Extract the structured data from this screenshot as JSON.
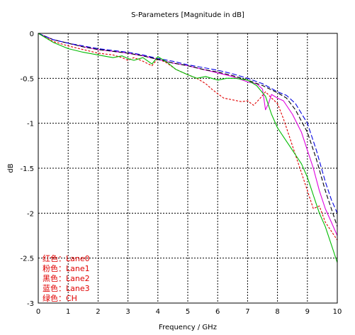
{
  "chart_data": {
    "type": "line",
    "title": "S-Parameters [Magnitude in dB]",
    "xlabel": "Frequency / GHz",
    "ylabel": "dB",
    "xlim": [
      0,
      10
    ],
    "ylim": [
      -3,
      0
    ],
    "x_ticks": [
      "0",
      "1",
      "2",
      "3",
      "4",
      "5",
      "6",
      "7",
      "8",
      "9",
      "10"
    ],
    "y_ticks": [
      "0",
      "-0.5",
      "-1",
      "-1.5",
      "-2",
      "-2.5",
      "-3"
    ],
    "grid": true,
    "legend_position": "bottom-left",
    "legend": [
      "红色：Lane0",
      "粉色：Lane1",
      "黑色：Lane2",
      "蓝色：Lane3",
      "绿色：CH"
    ],
    "series": [
      {
        "label": "Lane0",
        "color": "#e00000",
        "dash": "3,2",
        "x": [
          0,
          0.5,
          1,
          1.5,
          2,
          2.5,
          2.8,
          3,
          3.2,
          3.5,
          3.8,
          4,
          4.3,
          4.6,
          5,
          5.3,
          5.6,
          5.8,
          6,
          6.2,
          6.5,
          6.8,
          7,
          7.2,
          7.4,
          7.6,
          7.8,
          8,
          8.2,
          8.4,
          8.6,
          8.8,
          9,
          9.2,
          9.4,
          9.6,
          9.8,
          10
        ],
        "y": [
          0,
          -0.09,
          -0.14,
          -0.18,
          -0.22,
          -0.24,
          -0.27,
          -0.3,
          -0.27,
          -0.31,
          -0.36,
          -0.28,
          -0.33,
          -0.4,
          -0.46,
          -0.5,
          -0.56,
          -0.62,
          -0.67,
          -0.72,
          -0.74,
          -0.76,
          -0.75,
          -0.8,
          -0.73,
          -0.65,
          -0.72,
          -0.78,
          -0.95,
          -1.15,
          -1.35,
          -1.55,
          -1.75,
          -1.95,
          -1.92,
          -2.1,
          -2.2,
          -2.3
        ]
      },
      {
        "label": "Lane1",
        "color": "#e000e0",
        "dash": "",
        "x": [
          0,
          0.5,
          1,
          1.5,
          2,
          2.5,
          3,
          3.5,
          4,
          4.5,
          5,
          5.5,
          6,
          6.5,
          7,
          7.3,
          7.5,
          7.6,
          7.7,
          7.8,
          8,
          8.2,
          8.5,
          8.8,
          9,
          9.2,
          9.4,
          9.6,
          9.8,
          10
        ],
        "y": [
          0,
          -0.07,
          -0.11,
          -0.15,
          -0.18,
          -0.2,
          -0.22,
          -0.25,
          -0.29,
          -0.33,
          -0.36,
          -0.4,
          -0.44,
          -0.48,
          -0.54,
          -0.56,
          -0.62,
          -0.85,
          -0.78,
          -0.68,
          -0.72,
          -0.75,
          -0.9,
          -1.1,
          -1.3,
          -1.5,
          -1.75,
          -1.95,
          -2.1,
          -2.25
        ]
      },
      {
        "label": "Lane2",
        "color": "#000000",
        "dash": "6,3",
        "x": [
          0,
          0.5,
          1,
          1.5,
          2,
          2.5,
          3,
          3.5,
          4,
          4.5,
          5,
          5.5,
          6,
          6.5,
          7,
          7.5,
          8,
          8.3,
          8.6,
          9,
          9.3,
          9.6,
          9.8,
          10
        ],
        "y": [
          0,
          -0.07,
          -0.11,
          -0.15,
          -0.18,
          -0.2,
          -0.22,
          -0.25,
          -0.29,
          -0.33,
          -0.36,
          -0.4,
          -0.43,
          -0.47,
          -0.52,
          -0.58,
          -0.66,
          -0.72,
          -0.85,
          -1.1,
          -1.4,
          -1.75,
          -1.95,
          -2.15
        ]
      },
      {
        "label": "Lane3",
        "color": "#0000e0",
        "dash": "7,3",
        "x": [
          0,
          0.5,
          1,
          1.5,
          2,
          2.5,
          3,
          3.5,
          4,
          4.5,
          5,
          5.5,
          6,
          6.5,
          7,
          7.5,
          8,
          8.3,
          8.6,
          9,
          9.3,
          9.6,
          9.8,
          10
        ],
        "y": [
          0,
          -0.07,
          -0.11,
          -0.14,
          -0.17,
          -0.19,
          -0.21,
          -0.24,
          -0.28,
          -0.31,
          -0.35,
          -0.38,
          -0.41,
          -0.45,
          -0.5,
          -0.56,
          -0.65,
          -0.69,
          -0.78,
          -1.0,
          -1.3,
          -1.65,
          -1.85,
          -2.0
        ]
      },
      {
        "label": "CH",
        "color": "#00bb00",
        "dash": "",
        "x": [
          0,
          0.5,
          1,
          1.5,
          2,
          2.5,
          2.8,
          3,
          3.2,
          3.5,
          3.8,
          4,
          4.3,
          4.6,
          5,
          5.3,
          5.6,
          6,
          6.3,
          6.6,
          7,
          7.3,
          7.6,
          7.8,
          8,
          8.2,
          8.4,
          8.6,
          8.8,
          9,
          9.2,
          9.4,
          9.6,
          9.8,
          10
        ],
        "y": [
          0,
          -0.1,
          -0.17,
          -0.21,
          -0.24,
          -0.27,
          -0.25,
          -0.28,
          -0.3,
          -0.27,
          -0.34,
          -0.26,
          -0.32,
          -0.4,
          -0.46,
          -0.5,
          -0.48,
          -0.52,
          -0.5,
          -0.5,
          -0.52,
          -0.58,
          -0.7,
          -0.9,
          -1.05,
          -1.15,
          -1.25,
          -1.35,
          -1.45,
          -1.6,
          -1.8,
          -2.0,
          -2.15,
          -2.35,
          -2.55
        ]
      }
    ]
  }
}
